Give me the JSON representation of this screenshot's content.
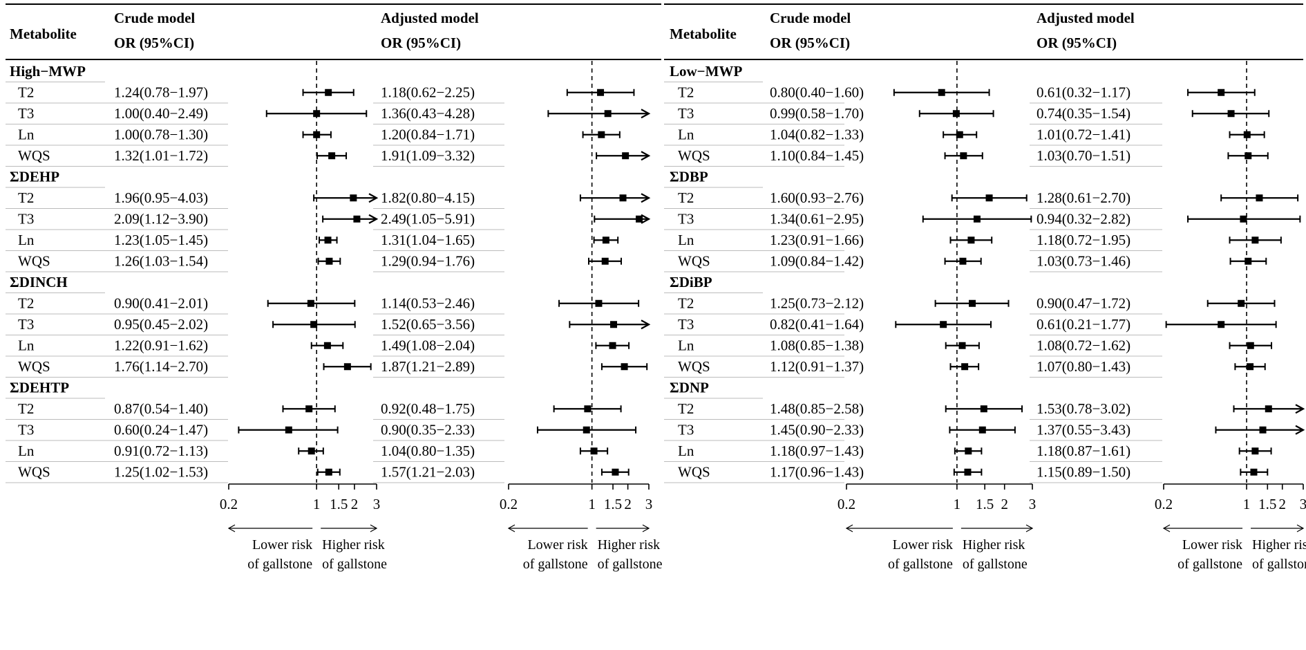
{
  "header": {
    "metabolite": "Metabolite",
    "crude_model": "Crude model",
    "adjusted_model": "Adjusted model",
    "or_ci": "OR (95%CI)"
  },
  "axis": {
    "ticks": [
      0.2,
      1,
      1.5,
      2,
      3
    ],
    "tick_labels": [
      "0.2",
      "1",
      "1.5",
      "2",
      "3"
    ],
    "reference_line": 1,
    "lower_label_line1": "Lower risk",
    "lower_label_line2": "of gallstone",
    "higher_label_line1": "Higher risk",
    "higher_label_line2": "of gallstone"
  },
  "chart_data": {
    "type": "forest",
    "xlim": [
      0.2,
      3
    ],
    "reference": 1,
    "panels": [
      {
        "groups": [
          {
            "name": "High−MWP",
            "rows": [
              {
                "label": "T2",
                "crude": {
                  "text": "1.24(0.78−1.97)",
                  "or": 1.24,
                  "lo": 0.78,
                  "hi": 1.97
                },
                "adjusted": {
                  "text": "1.18(0.62−2.25)",
                  "or": 1.18,
                  "lo": 0.62,
                  "hi": 2.25
                }
              },
              {
                "label": "T3",
                "crude": {
                  "text": "1.00(0.40−2.49)",
                  "or": 1.0,
                  "lo": 0.4,
                  "hi": 2.49
                },
                "adjusted": {
                  "text": "1.36(0.43−4.28)",
                  "or": 1.36,
                  "lo": 0.43,
                  "hi": 4.28
                }
              },
              {
                "label": "Ln",
                "crude": {
                  "text": "1.00(0.78−1.30)",
                  "or": 1.0,
                  "lo": 0.78,
                  "hi": 1.3
                },
                "adjusted": {
                  "text": "1.20(0.84−1.71)",
                  "or": 1.2,
                  "lo": 0.84,
                  "hi": 1.71
                }
              },
              {
                "label": "WQS",
                "crude": {
                  "text": "1.32(1.01−1.72)",
                  "or": 1.32,
                  "lo": 1.01,
                  "hi": 1.72
                },
                "adjusted": {
                  "text": "1.91(1.09−3.32)",
                  "or": 1.91,
                  "lo": 1.09,
                  "hi": 3.32
                }
              }
            ]
          },
          {
            "name": "ΣDEHP",
            "rows": [
              {
                "label": "T2",
                "crude": {
                  "text": "1.96(0.95−4.03)",
                  "or": 1.96,
                  "lo": 0.95,
                  "hi": 4.03
                },
                "adjusted": {
                  "text": "1.82(0.80−4.15)",
                  "or": 1.82,
                  "lo": 0.8,
                  "hi": 4.15
                }
              },
              {
                "label": "T3",
                "crude": {
                  "text": "2.09(1.12−3.90)",
                  "or": 2.09,
                  "lo": 1.12,
                  "hi": 3.9
                },
                "adjusted": {
                  "text": "2.49(1.05−5.91)",
                  "or": 2.49,
                  "lo": 1.05,
                  "hi": 5.91
                }
              },
              {
                "label": "Ln",
                "crude": {
                  "text": "1.23(1.05−1.45)",
                  "or": 1.23,
                  "lo": 1.05,
                  "hi": 1.45
                },
                "adjusted": {
                  "text": "1.31(1.04−1.65)",
                  "or": 1.31,
                  "lo": 1.04,
                  "hi": 1.65
                }
              },
              {
                "label": "WQS",
                "crude": {
                  "text": "1.26(1.03−1.54)",
                  "or": 1.26,
                  "lo": 1.03,
                  "hi": 1.54
                },
                "adjusted": {
                  "text": "1.29(0.94−1.76)",
                  "or": 1.29,
                  "lo": 0.94,
                  "hi": 1.76
                }
              }
            ]
          },
          {
            "name": "ΣDINCH",
            "rows": [
              {
                "label": "T2",
                "crude": {
                  "text": "0.90(0.41−2.01)",
                  "or": 0.9,
                  "lo": 0.41,
                  "hi": 2.01
                },
                "adjusted": {
                  "text": "1.14(0.53−2.46)",
                  "or": 1.14,
                  "lo": 0.53,
                  "hi": 2.46
                }
              },
              {
                "label": "T3",
                "crude": {
                  "text": "0.95(0.45−2.02)",
                  "or": 0.95,
                  "lo": 0.45,
                  "hi": 2.02
                },
                "adjusted": {
                  "text": "1.52(0.65−3.56)",
                  "or": 1.52,
                  "lo": 0.65,
                  "hi": 3.56
                }
              },
              {
                "label": "Ln",
                "crude": {
                  "text": "1.22(0.91−1.62)",
                  "or": 1.22,
                  "lo": 0.91,
                  "hi": 1.62
                },
                "adjusted": {
                  "text": "1.49(1.08−2.04)",
                  "or": 1.49,
                  "lo": 1.08,
                  "hi": 2.04
                }
              },
              {
                "label": "WQS",
                "crude": {
                  "text": "1.76(1.14−2.70)",
                  "or": 1.76,
                  "lo": 1.14,
                  "hi": 2.7
                },
                "adjusted": {
                  "text": "1.87(1.21−2.89)",
                  "or": 1.87,
                  "lo": 1.21,
                  "hi": 2.89
                }
              }
            ]
          },
          {
            "name": "ΣDEHTP",
            "rows": [
              {
                "label": "T2",
                "crude": {
                  "text": "0.87(0.54−1.40)",
                  "or": 0.87,
                  "lo": 0.54,
                  "hi": 1.4
                },
                "adjusted": {
                  "text": "0.92(0.48−1.75)",
                  "or": 0.92,
                  "lo": 0.48,
                  "hi": 1.75
                }
              },
              {
                "label": "T3",
                "crude": {
                  "text": "0.60(0.24−1.47)",
                  "or": 0.6,
                  "lo": 0.24,
                  "hi": 1.47
                },
                "adjusted": {
                  "text": "0.90(0.35−2.33)",
                  "or": 0.9,
                  "lo": 0.35,
                  "hi": 2.33
                }
              },
              {
                "label": "Ln",
                "crude": {
                  "text": "0.91(0.72−1.13)",
                  "or": 0.91,
                  "lo": 0.72,
                  "hi": 1.13
                },
                "adjusted": {
                  "text": "1.04(0.80−1.35)",
                  "or": 1.04,
                  "lo": 0.8,
                  "hi": 1.35
                }
              },
              {
                "label": "WQS",
                "crude": {
                  "text": "1.25(1.02−1.53)",
                  "or": 1.25,
                  "lo": 1.02,
                  "hi": 1.53
                },
                "adjusted": {
                  "text": "1.57(1.21−2.03)",
                  "or": 1.57,
                  "lo": 1.21,
                  "hi": 2.03
                }
              }
            ]
          }
        ]
      },
      {
        "groups": [
          {
            "name": "Low−MWP",
            "rows": [
              {
                "label": "T2",
                "crude": {
                  "text": "0.80(0.40−1.60)",
                  "or": 0.8,
                  "lo": 0.4,
                  "hi": 1.6
                },
                "adjusted": {
                  "text": "0.61(0.32−1.17)",
                  "or": 0.61,
                  "lo": 0.32,
                  "hi": 1.17
                }
              },
              {
                "label": "T3",
                "crude": {
                  "text": "0.99(0.58−1.70)",
                  "or": 0.99,
                  "lo": 0.58,
                  "hi": 1.7
                },
                "adjusted": {
                  "text": "0.74(0.35−1.54)",
                  "or": 0.74,
                  "lo": 0.35,
                  "hi": 1.54
                }
              },
              {
                "label": "Ln",
                "crude": {
                  "text": "1.04(0.82−1.33)",
                  "or": 1.04,
                  "lo": 0.82,
                  "hi": 1.33
                },
                "adjusted": {
                  "text": "1.01(0.72−1.41)",
                  "or": 1.01,
                  "lo": 0.72,
                  "hi": 1.41
                }
              },
              {
                "label": "WQS",
                "crude": {
                  "text": "1.10(0.84−1.45)",
                  "or": 1.1,
                  "lo": 0.84,
                  "hi": 1.45
                },
                "adjusted": {
                  "text": "1.03(0.70−1.51)",
                  "or": 1.03,
                  "lo": 0.7,
                  "hi": 1.51
                }
              }
            ]
          },
          {
            "name": "ΣDBP",
            "rows": [
              {
                "label": "T2",
                "crude": {
                  "text": "1.60(0.93−2.76)",
                  "or": 1.6,
                  "lo": 0.93,
                  "hi": 2.76
                },
                "adjusted": {
                  "text": "1.28(0.61−2.70)",
                  "or": 1.28,
                  "lo": 0.61,
                  "hi": 2.7
                }
              },
              {
                "label": "T3",
                "crude": {
                  "text": "1.34(0.61−2.95)",
                  "or": 1.34,
                  "lo": 0.61,
                  "hi": 2.95
                },
                "adjusted": {
                  "text": "0.94(0.32−2.82)",
                  "or": 0.94,
                  "lo": 0.32,
                  "hi": 2.82
                }
              },
              {
                "label": "Ln",
                "crude": {
                  "text": "1.23(0.91−1.66)",
                  "or": 1.23,
                  "lo": 0.91,
                  "hi": 1.66
                },
                "adjusted": {
                  "text": "1.18(0.72−1.95)",
                  "or": 1.18,
                  "lo": 0.72,
                  "hi": 1.95
                }
              },
              {
                "label": "WQS",
                "crude": {
                  "text": "1.09(0.84−1.42)",
                  "or": 1.09,
                  "lo": 0.84,
                  "hi": 1.42
                },
                "adjusted": {
                  "text": "1.03(0.73−1.46)",
                  "or": 1.03,
                  "lo": 0.73,
                  "hi": 1.46
                }
              }
            ]
          },
          {
            "name": "ΣDiBP",
            "rows": [
              {
                "label": "T2",
                "crude": {
                  "text": "1.25(0.73−2.12)",
                  "or": 1.25,
                  "lo": 0.73,
                  "hi": 2.12
                },
                "adjusted": {
                  "text": "0.90(0.47−1.72)",
                  "or": 0.9,
                  "lo": 0.47,
                  "hi": 1.72
                }
              },
              {
                "label": "T3",
                "crude": {
                  "text": "0.82(0.41−1.64)",
                  "or": 0.82,
                  "lo": 0.41,
                  "hi": 1.64
                },
                "adjusted": {
                  "text": "0.61(0.21−1.77)",
                  "or": 0.61,
                  "lo": 0.21,
                  "hi": 1.77
                }
              },
              {
                "label": "Ln",
                "crude": {
                  "text": "1.08(0.85−1.38)",
                  "or": 1.08,
                  "lo": 0.85,
                  "hi": 1.38
                },
                "adjusted": {
                  "text": "1.08(0.72−1.62)",
                  "or": 1.08,
                  "lo": 0.72,
                  "hi": 1.62
                }
              },
              {
                "label": "WQS",
                "crude": {
                  "text": "1.12(0.91−1.37)",
                  "or": 1.12,
                  "lo": 0.91,
                  "hi": 1.37
                },
                "adjusted": {
                  "text": "1.07(0.80−1.43)",
                  "or": 1.07,
                  "lo": 0.8,
                  "hi": 1.43
                }
              }
            ]
          },
          {
            "name": "ΣDNP",
            "rows": [
              {
                "label": "T2",
                "crude": {
                  "text": "1.48(0.85−2.58)",
                  "or": 1.48,
                  "lo": 0.85,
                  "hi": 2.58
                },
                "adjusted": {
                  "text": "1.53(0.78−3.02)",
                  "or": 1.53,
                  "lo": 0.78,
                  "hi": 3.02
                }
              },
              {
                "label": "T3",
                "crude": {
                  "text": "1.45(0.90−2.33)",
                  "or": 1.45,
                  "lo": 0.9,
                  "hi": 2.33
                },
                "adjusted": {
                  "text": "1.37(0.55−3.43)",
                  "or": 1.37,
                  "lo": 0.55,
                  "hi": 3.43
                }
              },
              {
                "label": "Ln",
                "crude": {
                  "text": "1.18(0.97−1.43)",
                  "or": 1.18,
                  "lo": 0.97,
                  "hi": 1.43
                },
                "adjusted": {
                  "text": "1.18(0.87−1.61)",
                  "or": 1.18,
                  "lo": 0.87,
                  "hi": 1.61
                }
              },
              {
                "label": "WQS",
                "crude": {
                  "text": "1.17(0.96−1.43)",
                  "or": 1.17,
                  "lo": 0.96,
                  "hi": 1.43
                },
                "adjusted": {
                  "text": "1.15(0.89−1.50)",
                  "or": 1.15,
                  "lo": 0.89,
                  "hi": 1.5
                }
              }
            ]
          }
        ]
      }
    ]
  }
}
